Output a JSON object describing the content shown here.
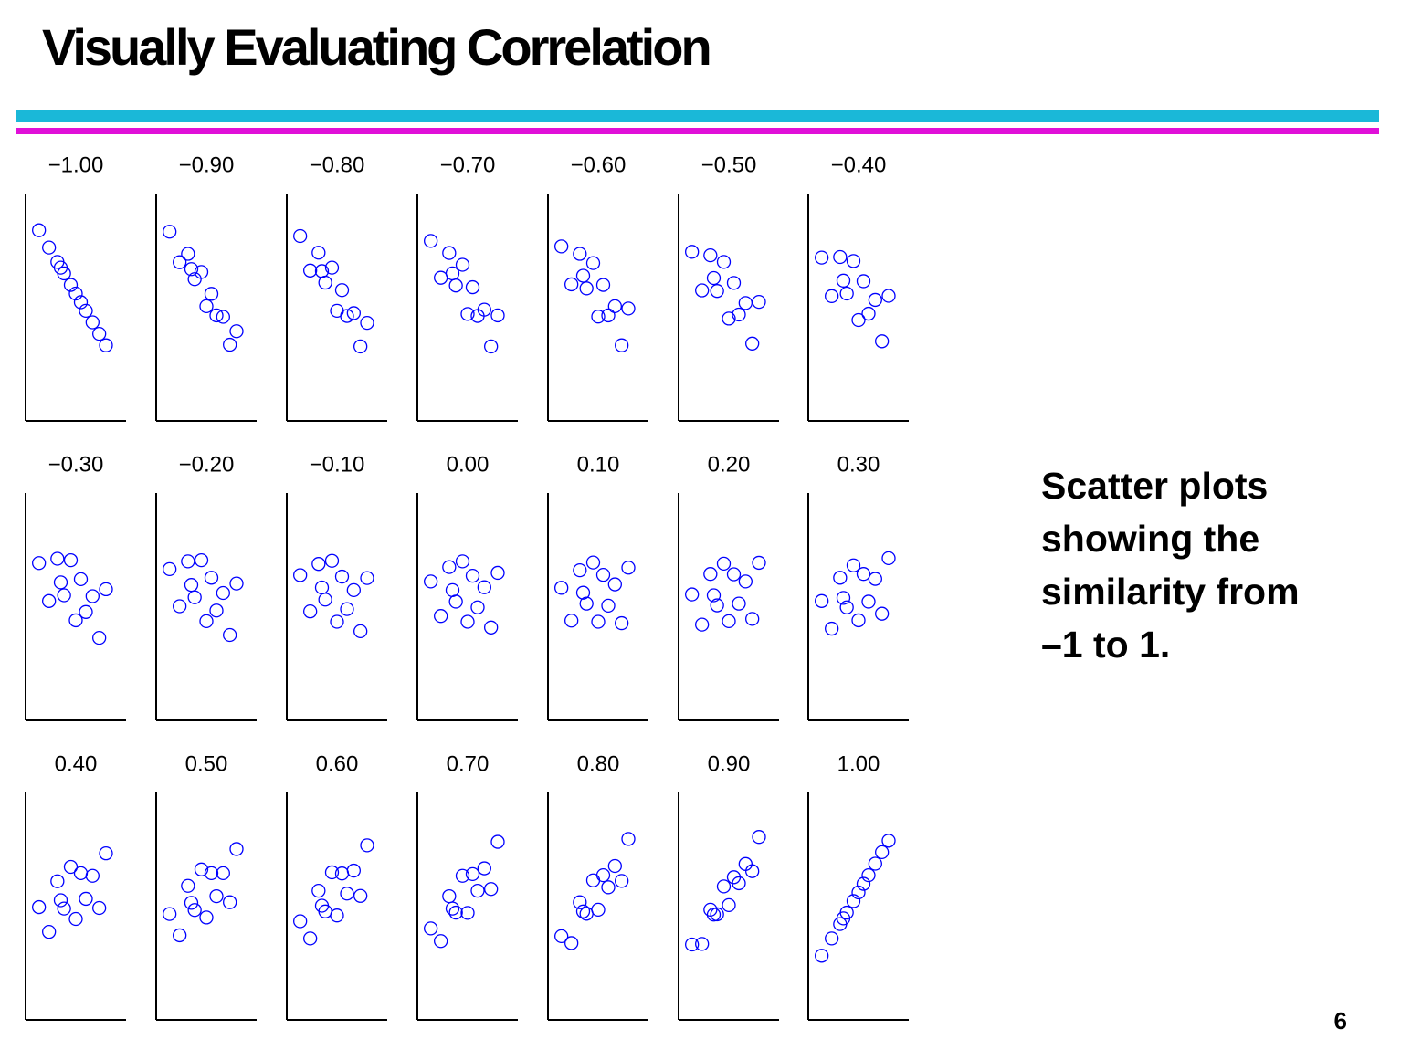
{
  "slide": {
    "title": "Visually Evaluating Correlation",
    "side_text": [
      "Scatter plots",
      "showing the",
      "similarity from",
      "–1 to 1."
    ],
    "page_number": "6"
  },
  "chart_data": [
    {
      "type": "scatter",
      "title": "−1.00",
      "color": "#0000ff",
      "xlim": [
        -3,
        3
      ],
      "ylim": [
        -3,
        3
      ],
      "x": [
        -2.2,
        -1.6,
        -1.1,
        -0.7,
        -0.3,
        0,
        0.3,
        0.6,
        1.0,
        1.4,
        1.8,
        -0.9
      ],
      "y": [
        2.2,
        1.6,
        1.1,
        0.7,
        0.3,
        0,
        -0.3,
        -0.6,
        -1.0,
        -1.4,
        -1.8,
        0.9
      ]
    },
    {
      "type": "scatter",
      "title": "−0.90",
      "color": "#0000ff",
      "xlim": [
        -3,
        3
      ],
      "ylim": [
        -3,
        3
      ],
      "x": [
        -2.2,
        -1.6,
        -1.1,
        -0.7,
        -0.3,
        0,
        0.3,
        0.6,
        1.0,
        1.4,
        1.8,
        -0.9
      ],
      "y": [
        2.15,
        1.09,
        1.38,
        0.5,
        0.75,
        -0.44,
        -0.01,
        -0.76,
        -0.81,
        -1.78,
        -1.31,
        0.85
      ]
    },
    {
      "type": "scatter",
      "title": "−0.80",
      "color": "#0000ff",
      "xlim": [
        -3,
        3
      ],
      "ylim": [
        -3,
        3
      ],
      "x": [
        -2.2,
        -1.6,
        -1.1,
        -0.7,
        -0.3,
        0,
        0.3,
        0.6,
        1.0,
        1.4,
        1.8,
        -0.9
      ],
      "y": [
        2.0,
        0.8,
        1.42,
        0.38,
        0.9,
        -0.6,
        0.12,
        -0.78,
        -0.68,
        -1.84,
        -1.02,
        0.78
      ]
    },
    {
      "type": "scatter",
      "title": "−0.70",
      "color": "#0000ff",
      "xlim": [
        -3,
        3
      ],
      "ylim": [
        -3,
        3
      ],
      "x": [
        -2.2,
        -1.6,
        -1.1,
        -0.7,
        -0.3,
        0,
        0.3,
        0.6,
        1.0,
        1.4,
        1.8,
        -0.9
      ],
      "y": [
        1.83,
        0.55,
        1.41,
        0.28,
        1.0,
        -0.71,
        0.22,
        -0.78,
        -0.56,
        -1.84,
        -0.76,
        0.7
      ]
    },
    {
      "type": "scatter",
      "title": "−0.60",
      "color": "#0000ff",
      "xlim": [
        -3,
        3
      ],
      "ylim": [
        -3,
        3
      ],
      "x": [
        -2.2,
        -1.6,
        -1.1,
        -0.7,
        -0.3,
        0,
        0.3,
        0.6,
        1.0,
        1.4,
        1.8,
        -0.9
      ],
      "y": [
        1.64,
        0.32,
        1.38,
        0.18,
        1.06,
        -0.8,
        0.3,
        -0.76,
        -0.44,
        -1.8,
        -0.52,
        0.62
      ]
    },
    {
      "type": "scatter",
      "title": "−0.50",
      "color": "#0000ff",
      "xlim": [
        -3,
        3
      ],
      "ylim": [
        -3,
        3
      ],
      "x": [
        -2.2,
        -1.6,
        -1.1,
        -0.7,
        -0.3,
        0,
        0.3,
        0.6,
        1.0,
        1.4,
        1.8,
        -0.9
      ],
      "y": [
        1.45,
        0.11,
        1.33,
        0.09,
        1.1,
        -0.87,
        0.37,
        -0.73,
        -0.33,
        -1.74,
        -0.29,
        0.54
      ]
    },
    {
      "type": "scatter",
      "title": "−0.40",
      "color": "#0000ff",
      "xlim": [
        -3,
        3
      ],
      "ylim": [
        -3,
        3
      ],
      "x": [
        -2.2,
        -1.6,
        -1.1,
        -0.7,
        -0.3,
        0,
        0.3,
        0.6,
        1.0,
        1.4,
        1.8,
        -0.9
      ],
      "y": [
        1.25,
        -0.09,
        1.27,
        0,
        1.13,
        -0.92,
        0.43,
        -0.7,
        -0.22,
        -1.66,
        -0.08,
        0.45
      ]
    },
    {
      "type": "scatter",
      "title": "−0.30",
      "color": "#0000ff",
      "xlim": [
        -3,
        3
      ],
      "ylim": [
        -3,
        3
      ],
      "x": [
        -2.2,
        -1.6,
        -1.1,
        -0.7,
        -0.3,
        0,
        0.3,
        0.6,
        1.0,
        1.4,
        1.8,
        -0.9
      ],
      "y": [
        1.04,
        -0.28,
        1.19,
        -0.08,
        1.14,
        -0.95,
        0.48,
        -0.66,
        -0.11,
        -1.56,
        0.13,
        0.37
      ]
    },
    {
      "type": "scatter",
      "title": "−0.20",
      "color": "#0000ff",
      "xlim": [
        -3,
        3
      ],
      "ylim": [
        -3,
        3
      ],
      "x": [
        -2.2,
        -1.6,
        -1.1,
        -0.7,
        -0.3,
        0,
        0.3,
        0.6,
        1.0,
        1.4,
        1.8,
        -0.9
      ],
      "y": [
        0.83,
        -0.46,
        1.1,
        -0.15,
        1.14,
        -0.98,
        0.53,
        -0.61,
        0,
        -1.46,
        0.33,
        0.28
      ]
    },
    {
      "type": "scatter",
      "title": "−0.10",
      "color": "#0000ff",
      "xlim": [
        -3,
        3
      ],
      "ylim": [
        -3,
        3
      ],
      "x": [
        -2.2,
        -1.6,
        -1.1,
        -0.7,
        -0.3,
        0,
        0.3,
        0.6,
        1.0,
        1.4,
        1.8,
        -0.9
      ],
      "y": [
        0.62,
        -0.64,
        1.01,
        -0.23,
        1.12,
        -1.0,
        0.57,
        -0.56,
        0.1,
        -1.33,
        0.52,
        0.19
      ]
    },
    {
      "type": "scatter",
      "title": "0.00",
      "color": "#0000ff",
      "xlim": [
        -3,
        3
      ],
      "ylim": [
        -3,
        3
      ],
      "x": [
        -2.2,
        -1.6,
        -1.1,
        -0.7,
        -0.3,
        0,
        0.3,
        0.6,
        1.0,
        1.4,
        1.8,
        -0.9
      ],
      "y": [
        0.4,
        -0.8,
        0.9,
        -0.3,
        1.1,
        -1.0,
        0.6,
        -0.5,
        0.2,
        -1.2,
        0.7,
        0.1
      ]
    },
    {
      "type": "scatter",
      "title": "0.10",
      "color": "#0000ff",
      "xlim": [
        -3,
        3
      ],
      "ylim": [
        -3,
        3
      ],
      "x": [
        -2.2,
        -1.6,
        -1.1,
        -0.7,
        -0.3,
        0,
        0.3,
        0.6,
        1.0,
        1.4,
        1.8,
        -0.9
      ],
      "y": [
        0.18,
        -0.96,
        0.79,
        -0.37,
        1.06,
        -1.0,
        0.63,
        -0.44,
        0.3,
        -1.05,
        0.88,
        0.01
      ]
    },
    {
      "type": "scatter",
      "title": "0.20",
      "color": "#0000ff",
      "xlim": [
        -3,
        3
      ],
      "ylim": [
        -3,
        3
      ],
      "x": [
        -2.2,
        -1.6,
        -1.1,
        -0.7,
        -0.3,
        0,
        0.3,
        0.6,
        1.0,
        1.4,
        1.8,
        -0.9
      ],
      "y": [
        -0.05,
        -1.1,
        0.66,
        -0.43,
        1.02,
        -0.98,
        0.65,
        -0.37,
        0.4,
        -0.9,
        1.05,
        -0.08
      ]
    },
    {
      "type": "scatter",
      "title": "0.30",
      "color": "#0000ff",
      "xlim": [
        -3,
        3
      ],
      "ylim": [
        -3,
        3
      ],
      "x": [
        -2.2,
        -1.6,
        -1.1,
        -0.7,
        -0.3,
        0,
        0.3,
        0.6,
        1.0,
        1.4,
        1.8,
        -0.9
      ],
      "y": [
        -0.28,
        -1.24,
        0.53,
        -0.5,
        0.96,
        -0.95,
        0.66,
        -0.3,
        0.49,
        -0.72,
        1.21,
        -0.17
      ]
    },
    {
      "type": "scatter",
      "title": "0.40",
      "color": "#0000ff",
      "xlim": [
        -3,
        3
      ],
      "ylim": [
        -3,
        3
      ],
      "x": [
        -2.2,
        -1.6,
        -1.1,
        -0.7,
        -0.3,
        0,
        0.3,
        0.6,
        1.0,
        1.4,
        1.8,
        -0.9
      ],
      "y": [
        -0.51,
        -1.37,
        0.39,
        -0.56,
        0.89,
        -0.92,
        0.67,
        -0.22,
        0.58,
        -0.54,
        1.36,
        -0.27
      ]
    },
    {
      "type": "scatter",
      "title": "0.50",
      "color": "#0000ff",
      "xlim": [
        -3,
        3
      ],
      "ylim": [
        -3,
        3
      ],
      "x": [
        -2.2,
        -1.6,
        -1.1,
        -0.7,
        -0.3,
        0,
        0.3,
        0.6,
        1.0,
        1.4,
        1.8,
        -0.9
      ],
      "y": [
        -0.75,
        -1.49,
        0.23,
        -0.61,
        0.8,
        -0.87,
        0.67,
        -0.13,
        0.67,
        -0.34,
        1.51,
        -0.36
      ]
    },
    {
      "type": "scatter",
      "title": "0.60",
      "color": "#0000ff",
      "xlim": [
        -3,
        3
      ],
      "ylim": [
        -3,
        3
      ],
      "x": [
        -2.2,
        -1.6,
        -1.1,
        -0.7,
        -0.3,
        0,
        0.3,
        0.6,
        1.0,
        1.4,
        1.8,
        -0.9
      ],
      "y": [
        -1.0,
        -1.6,
        0.06,
        -0.66,
        0.7,
        -0.8,
        0.66,
        -0.04,
        0.76,
        -0.12,
        1.64,
        -0.46
      ]
    },
    {
      "type": "scatter",
      "title": "0.70",
      "color": "#0000ff",
      "xlim": [
        -3,
        3
      ],
      "ylim": [
        -3,
        3
      ],
      "x": [
        -2.2,
        -1.6,
        -1.1,
        -0.7,
        -0.3,
        0,
        0.3,
        0.6,
        1.0,
        1.4,
        1.8,
        -0.9
      ],
      "y": [
        -1.25,
        -1.69,
        -0.13,
        -0.7,
        0.58,
        -0.71,
        0.64,
        0.06,
        0.84,
        0.12,
        1.76,
        -0.56
      ]
    },
    {
      "type": "scatter",
      "title": "0.80",
      "color": "#0000ff",
      "xlim": [
        -3,
        3
      ],
      "ylim": [
        -3,
        3
      ],
      "x": [
        -2.2,
        -1.6,
        -1.1,
        -0.7,
        -0.3,
        0,
        0.3,
        0.6,
        1.0,
        1.4,
        1.8,
        -0.9
      ],
      "y": [
        -1.52,
        -1.76,
        -0.34,
        -0.74,
        0.42,
        -0.6,
        0.6,
        0.18,
        0.92,
        0.4,
        1.86,
        -0.66
      ]
    },
    {
      "type": "scatter",
      "title": "0.90",
      "color": "#0000ff",
      "xlim": [
        -3,
        3
      ],
      "ylim": [
        -3,
        3
      ],
      "x": [
        -2.2,
        -1.6,
        -1.1,
        -0.7,
        -0.3,
        0,
        0.3,
        0.6,
        1.0,
        1.4,
        1.8,
        -0.9
      ],
      "y": [
        -1.81,
        -1.79,
        -0.6,
        -0.76,
        0.21,
        -0.44,
        0.53,
        0.32,
        0.99,
        0.74,
        1.93,
        -0.77
      ]
    },
    {
      "type": "scatter",
      "title": "1.00",
      "color": "#0000ff",
      "xlim": [
        -3,
        3
      ],
      "ylim": [
        -3,
        3
      ],
      "x": [
        -2.2,
        -1.6,
        -1.1,
        -0.7,
        -0.3,
        0,
        0.3,
        0.6,
        1.0,
        1.4,
        1.8,
        -0.9
      ],
      "y": [
        -2.2,
        -1.6,
        -1.1,
        -0.7,
        -0.3,
        0,
        0.3,
        0.6,
        1.0,
        1.4,
        1.8,
        -0.9
      ]
    }
  ]
}
